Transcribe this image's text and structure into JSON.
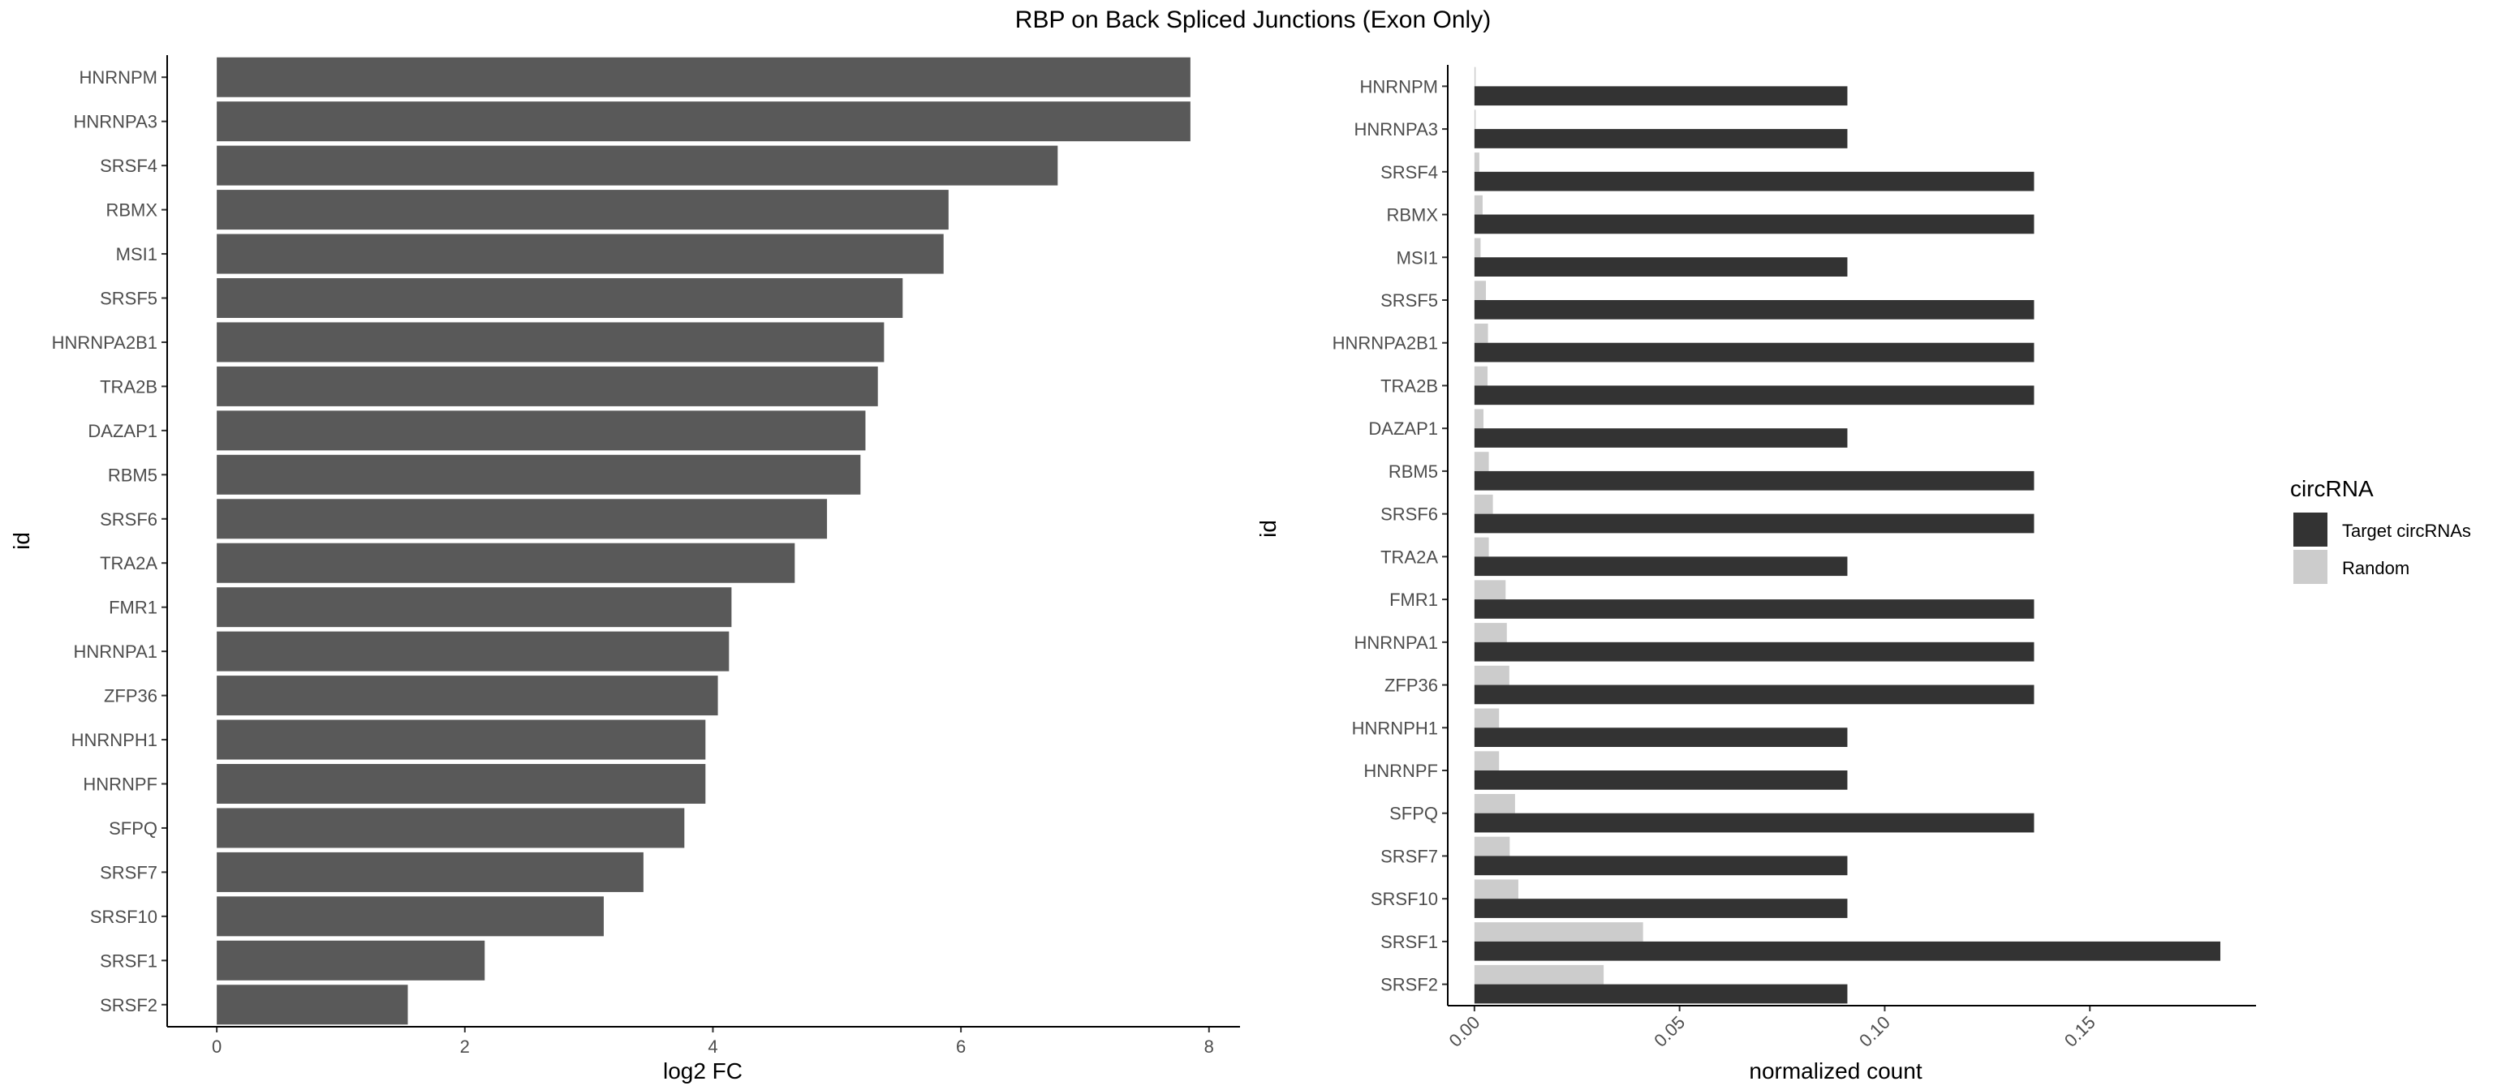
{
  "title": "RBP on Back Spliced Junctions (Exon Only)",
  "chart_data": [
    {
      "type": "bar",
      "orientation": "horizontal",
      "categories": [
        "HNRNPM",
        "HNRNPA3",
        "SRSF4",
        "RBMX",
        "MSI1",
        "SRSF5",
        "HNRNPA2B1",
        "TRA2B",
        "DAZAP1",
        "RBM5",
        "SRSF6",
        "TRA2A",
        "FMR1",
        "HNRNPA1",
        "ZFP36",
        "HNRNPH1",
        "HNRNPF",
        "SFPQ",
        "SRSF7",
        "SRSF10",
        "SRSF1",
        "SRSF2"
      ],
      "values": [
        7.85,
        7.85,
        6.78,
        5.9,
        5.86,
        5.53,
        5.38,
        5.33,
        5.23,
        5.19,
        4.92,
        4.66,
        4.15,
        4.13,
        4.04,
        3.94,
        3.94,
        3.77,
        3.44,
        3.12,
        2.16,
        1.54
      ],
      "xlabel": "log2 FC",
      "ylabel": "id",
      "xlim": [
        -0.4,
        8.25
      ],
      "xticks": [
        "0",
        "2",
        "4",
        "6",
        "8"
      ],
      "bar_color": "#595959",
      "grid": false
    },
    {
      "type": "bar",
      "orientation": "horizontal",
      "grouped": true,
      "categories": [
        "HNRNPM",
        "HNRNPA3",
        "SRSF4",
        "RBMX",
        "MSI1",
        "SRSF5",
        "HNRNPA2B1",
        "TRA2B",
        "DAZAP1",
        "RBM5",
        "SRSF6",
        "TRA2A",
        "FMR1",
        "HNRNPA1",
        "ZFP36",
        "HNRNPH1",
        "HNRNPF",
        "SFPQ",
        "SRSF7",
        "SRSF10",
        "SRSF1",
        "SRSF2"
      ],
      "series": [
        {
          "name": "Target circRNAs",
          "color": "#333333",
          "values": [
            0.0909,
            0.0909,
            0.1364,
            0.1364,
            0.0909,
            0.1364,
            0.1364,
            0.1364,
            0.0909,
            0.1364,
            0.1364,
            0.0909,
            0.1364,
            0.1364,
            0.1364,
            0.0909,
            0.0909,
            0.1364,
            0.0909,
            0.0909,
            0.1818,
            0.0909
          ]
        },
        {
          "name": "Random",
          "color": "#cccccc",
          "values": [
            0.0003,
            0.0003,
            0.0012,
            0.002,
            0.0015,
            0.0028,
            0.0033,
            0.0032,
            0.0022,
            0.0035,
            0.0045,
            0.0035,
            0.0076,
            0.0079,
            0.0085,
            0.006,
            0.006,
            0.0099,
            0.0086,
            0.0107,
            0.0411,
            0.0315
          ]
        }
      ],
      "xlabel": "normalized count",
      "ylabel": "id",
      "xlim": [
        -0.0065,
        0.1905
      ],
      "xticks": [
        "0.00",
        "0.05",
        "0.10",
        "0.15"
      ],
      "legend": {
        "title": "circRNA",
        "position": "right"
      },
      "grid": false
    }
  ]
}
